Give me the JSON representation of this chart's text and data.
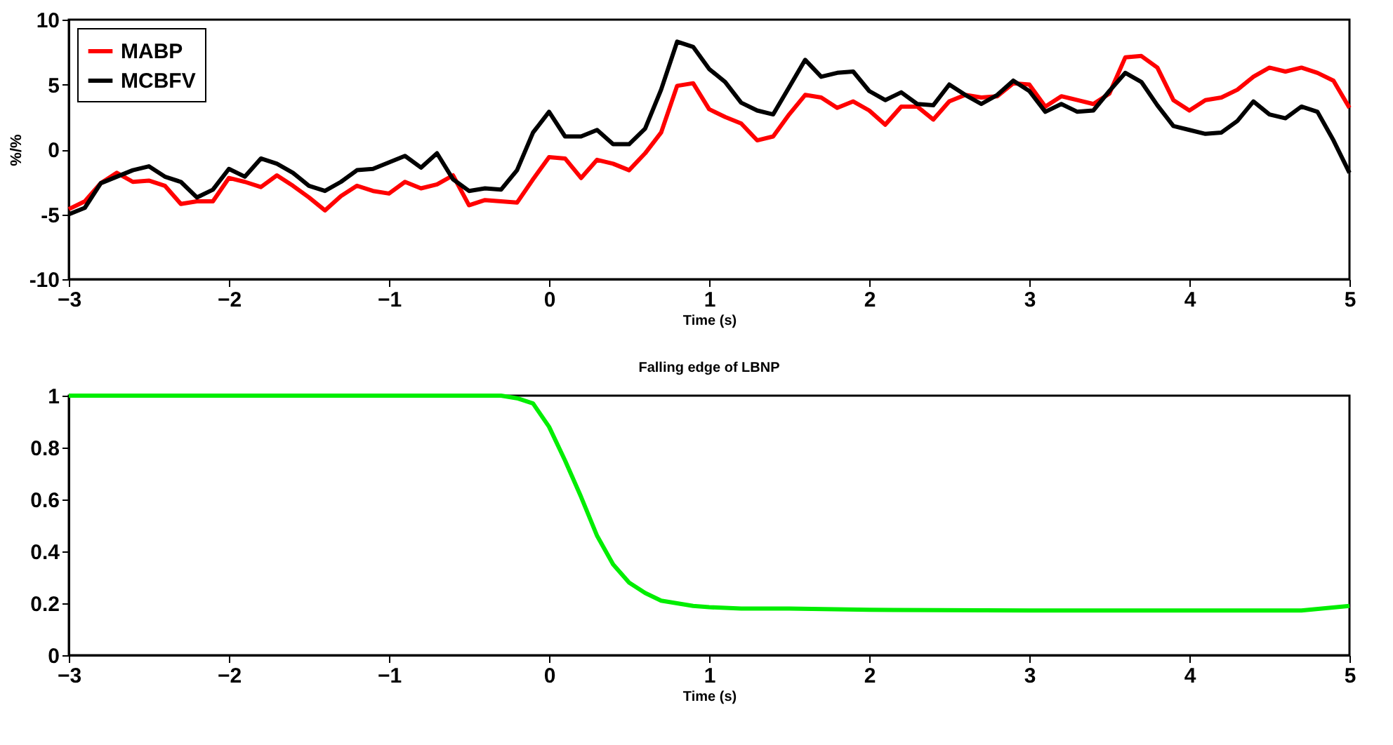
{
  "chart_data": [
    {
      "type": "line",
      "xlabel": "Time (s)",
      "ylabel": "%/%",
      "xlim": [
        -3,
        5
      ],
      "xticks": [
        -3,
        -2,
        -1,
        0,
        1,
        2,
        3,
        4,
        5
      ],
      "ylim": [
        -10,
        10
      ],
      "yticks": [
        -10,
        -5,
        0,
        5,
        10
      ],
      "grid": false,
      "legend": "top left",
      "x": [
        -3,
        -2.9,
        -2.8,
        -2.7,
        -2.6,
        -2.5,
        -2.4,
        -2.3,
        -2.2,
        -2.1,
        -2,
        -1.9,
        -1.8,
        -1.7,
        -1.6,
        -1.5,
        -1.4,
        -1.3,
        -1.2,
        -1.1,
        -1,
        -0.9,
        -0.8,
        -0.7,
        -0.6,
        -0.5,
        -0.4,
        -0.3,
        -0.2,
        -0.1,
        0,
        0.1,
        0.2,
        0.3,
        0.4,
        0.5,
        0.6,
        0.7,
        0.8,
        0.9,
        1,
        1.1,
        1.2,
        1.3,
        1.4,
        1.5,
        1.6,
        1.7,
        1.8,
        1.9,
        2,
        2.1,
        2.2,
        2.3,
        2.4,
        2.5,
        2.6,
        2.7,
        2.8,
        2.9,
        3,
        3.1,
        3.2,
        3.3,
        3.4,
        3.5,
        3.6,
        3.7,
        3.8,
        3.9,
        4,
        4.1,
        4.2,
        4.3,
        4.4,
        4.5,
        4.6,
        4.7,
        4.8,
        4.9,
        5
      ],
      "series": [
        {
          "name": "MABP",
          "color": "#ff0000",
          "values": [
            -4.6,
            -4.0,
            -2.6,
            -1.8,
            -2.5,
            -2.4,
            -2.8,
            -4.2,
            -4.0,
            -4.0,
            -2.2,
            -2.5,
            -2.9,
            -2.0,
            -2.8,
            -3.7,
            -4.7,
            -3.6,
            -2.8,
            -3.2,
            -3.4,
            -2.5,
            -3.0,
            -2.7,
            -2.0,
            -4.3,
            -3.9,
            -4.0,
            -4.1,
            -2.3,
            -0.6,
            -0.7,
            -2.2,
            -0.8,
            -1.1,
            -1.6,
            -0.3,
            1.3,
            4.9,
            5.1,
            3.1,
            2.5,
            2.0,
            0.7,
            1.0,
            2.7,
            4.2,
            4.0,
            3.2,
            3.7,
            3.0,
            1.9,
            3.3,
            3.3,
            2.3,
            3.7,
            4.2,
            4.0,
            4.1,
            5.1,
            5.0,
            3.3,
            4.1,
            3.8,
            3.5,
            4.3,
            7.1,
            7.2,
            6.3,
            3.8,
            3.0,
            3.8,
            4.0,
            4.6,
            5.6,
            6.3,
            6.0,
            6.3,
            5.9,
            5.3,
            3.2
          ]
        },
        {
          "name": "MCBFV",
          "color": "#000000",
          "values": [
            -5.0,
            -4.5,
            -2.6,
            -2.1,
            -1.6,
            -1.3,
            -2.1,
            -2.5,
            -3.7,
            -3.1,
            -1.5,
            -2.1,
            -0.7,
            -1.1,
            -1.8,
            -2.8,
            -3.2,
            -2.5,
            -1.6,
            -1.5,
            -1.0,
            -0.5,
            -1.4,
            -0.3,
            -2.3,
            -3.2,
            -3.0,
            -3.1,
            -1.6,
            1.3,
            2.9,
            1.0,
            1.0,
            1.5,
            0.4,
            0.4,
            1.6,
            4.6,
            8.3,
            7.9,
            6.2,
            5.2,
            3.6,
            3.0,
            2.7,
            4.8,
            6.9,
            5.6,
            5.9,
            6.0,
            4.5,
            3.8,
            4.4,
            3.5,
            3.4,
            5.0,
            4.2,
            3.5,
            4.2,
            5.3,
            4.5,
            2.9,
            3.5,
            2.9,
            3.0,
            4.5,
            5.9,
            5.2,
            3.4,
            1.8,
            1.5,
            1.2,
            1.3,
            2.2,
            3.7,
            2.7,
            2.4,
            3.3,
            2.9,
            0.7,
            -1.8
          ]
        }
      ]
    },
    {
      "type": "line",
      "title": "Falling edge of LBNP",
      "xlabel": "Time (s)",
      "xlim": [
        -3,
        5
      ],
      "xticks": [
        -3,
        -2,
        -1,
        0,
        1,
        2,
        3,
        4,
        5
      ],
      "ylim": [
        0,
        1
      ],
      "yticks": [
        0,
        0.2,
        0.4,
        0.6,
        0.8,
        1
      ],
      "grid": false,
      "x": [
        -3,
        -2,
        -1,
        -0.3,
        -0.2,
        -0.1,
        0,
        0.1,
        0.2,
        0.3,
        0.4,
        0.5,
        0.6,
        0.7,
        0.8,
        0.9,
        1,
        1.2,
        1.5,
        2,
        3,
        4,
        4.7,
        5
      ],
      "series": [
        {
          "color": "#00ee00",
          "values": [
            1,
            1,
            1,
            1,
            0.99,
            0.97,
            0.88,
            0.75,
            0.61,
            0.46,
            0.35,
            0.28,
            0.24,
            0.21,
            0.2,
            0.19,
            0.185,
            0.18,
            0.18,
            0.175,
            0.172,
            0.172,
            0.172,
            0.19
          ]
        }
      ]
    }
  ]
}
